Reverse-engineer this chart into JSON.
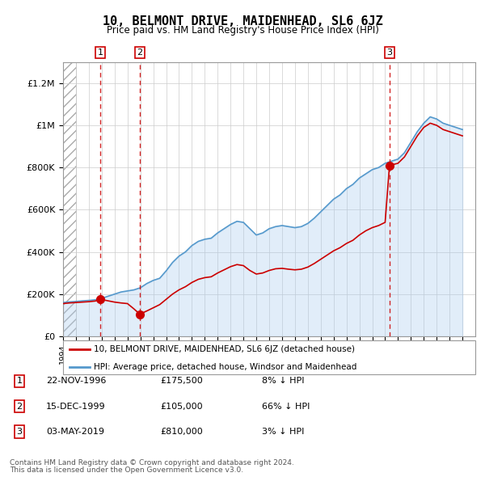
{
  "title": "10, BELMONT DRIVE, MAIDENHEAD, SL6 6JZ",
  "subtitle": "Price paid vs. HM Land Registry's House Price Index (HPI)",
  "transactions": [
    {
      "date": 1996.9,
      "price": 175500,
      "label": "1"
    },
    {
      "date": 1999.96,
      "price": 105000,
      "label": "2"
    },
    {
      "date": 2019.34,
      "price": 810000,
      "label": "3"
    }
  ],
  "legend_entries": [
    "10, BELMONT DRIVE, MAIDENHEAD, SL6 6JZ (detached house)",
    "HPI: Average price, detached house, Windsor and Maidenhead"
  ],
  "table_rows": [
    {
      "num": "1",
      "date": "22-NOV-1996",
      "price": "£175,500",
      "hpi": "8% ↓ HPI"
    },
    {
      "num": "2",
      "date": "15-DEC-1999",
      "price": "£105,000",
      "hpi": "66% ↓ HPI"
    },
    {
      "num": "3",
      "date": "03-MAY-2019",
      "price": "£810,000",
      "hpi": "3% ↓ HPI"
    }
  ],
  "footnote1": "Contains HM Land Registry data © Crown copyright and database right 2024.",
  "footnote2": "This data is licensed under the Open Government Licence v3.0.",
  "hatch_start": 1994.0,
  "hatch_end": 1995.0,
  "xmin": 1994.0,
  "xmax": 2026.0,
  "ymin": 0,
  "ymax": 1300000,
  "red_color": "#cc0000",
  "blue_color": "#5599cc",
  "blue_fill": "#aaccee"
}
